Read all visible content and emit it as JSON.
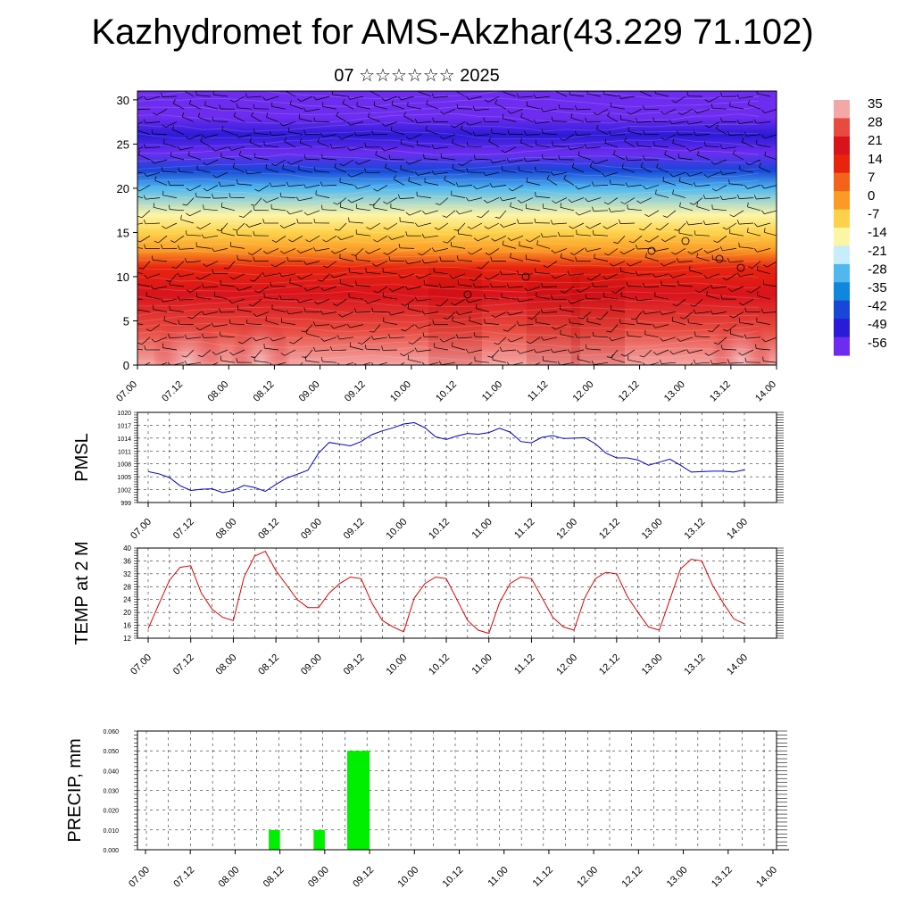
{
  "title": "Kazhydromet for AMS-Akzhar(43.229 71.102)",
  "subtitle": "07 ☆☆☆☆☆☆ 2025",
  "chart_data": [
    {
      "type": "heatmap",
      "name": "upper-air-section",
      "ylim": [
        0,
        31
      ],
      "yticks": [
        0,
        5,
        10,
        15,
        20,
        25,
        30
      ],
      "xticks": [
        "07.00",
        "07.12",
        "08.00",
        "08.12",
        "09.00",
        "09.12",
        "10.00",
        "10.12",
        "11.00",
        "11.12",
        "12.00",
        "12.12",
        "13.00",
        "13.12",
        "14.00"
      ],
      "colorbar": {
        "labels": [
          "35",
          "28",
          "21",
          "14",
          "7",
          "0",
          "-7",
          "-14",
          "-21",
          "-28",
          "-35",
          "-42",
          "-49",
          "-56"
        ],
        "colors": [
          "#f4a7a6",
          "#e84a3f",
          "#d9131b",
          "#e8240f",
          "#f5621a",
          "#fb9a24",
          "#fdd24a",
          "#fdf5a6",
          "#c7ecfb",
          "#50b8ef",
          "#0f87de",
          "#1746d8",
          "#2a1bd8",
          "#6d2cf0"
        ]
      },
      "bands": [
        {
          "level": 0,
          "value": 30
        },
        {
          "level": 4,
          "value": 25
        },
        {
          "level": 8,
          "value": 18
        },
        {
          "level": 11,
          "value": 8
        },
        {
          "level": 13,
          "value": 0
        },
        {
          "level": 15,
          "value": -9
        },
        {
          "level": 17,
          "value": -19
        },
        {
          "level": 20,
          "value": -32
        },
        {
          "level": 22,
          "value": -46
        },
        {
          "level": 24,
          "value": -58
        },
        {
          "level": 26,
          "value": -52
        },
        {
          "level": 28,
          "value": -56
        },
        {
          "level": 31,
          "value": -60
        }
      ]
    },
    {
      "type": "line",
      "name": "pmsl",
      "ylabel": "PMSL",
      "ylim": [
        999,
        1020
      ],
      "yticks": [
        999,
        1002,
        1005,
        1008,
        1011,
        1014,
        1017,
        1020
      ],
      "xticks": [
        "07.00",
        "07.12",
        "08.00",
        "08.12",
        "09.00",
        "09.12",
        "10.00",
        "10.12",
        "11.00",
        "11.12",
        "12.00",
        "12.12",
        "13.00",
        "13.12",
        "14.00"
      ],
      "color": "#0000cc",
      "values": [
        1006.2,
        1005.7,
        1004.8,
        1002.9,
        1001.8,
        1002.1,
        1002.2,
        1001.3,
        1001.8,
        1003.0,
        1002.5,
        1001.6,
        1003.2,
        1004.7,
        1005.6,
        1006.5,
        1010.5,
        1013.0,
        1012.6,
        1012.2,
        1013.2,
        1014.8,
        1015.7,
        1016.4,
        1017.3,
        1017.6,
        1016.4,
        1014.3,
        1013.7,
        1014.5,
        1015.1,
        1014.9,
        1015.3,
        1016.3,
        1015.4,
        1013.2,
        1012.9,
        1014.2,
        1014.6,
        1013.9,
        1014.0,
        1014.1,
        1012.7,
        1010.5,
        1009.4,
        1009.4,
        1008.9,
        1007.7,
        1008.4,
        1009.1,
        1007.7,
        1006.1,
        1006.2,
        1006.3,
        1006.3,
        1006.1,
        1006.6
      ]
    },
    {
      "type": "line",
      "name": "temp-2m",
      "ylabel": "TEMP at 2 M",
      "ylim": [
        12,
        40
      ],
      "yticks": [
        12,
        16,
        20,
        24,
        28,
        32,
        36,
        40
      ],
      "xticks": [
        "07.00",
        "07.12",
        "08.00",
        "08.12",
        "09.00",
        "09.12",
        "10.00",
        "10.12",
        "11.00",
        "11.12",
        "12.00",
        "12.12",
        "13.00",
        "13.12",
        "14.00"
      ],
      "color": "#dd0000",
      "values": [
        15,
        22.5,
        30,
        34,
        34.5,
        26,
        21,
        18.5,
        17.5,
        31,
        37.5,
        39,
        33,
        28.5,
        24,
        21.5,
        21.5,
        26,
        29,
        31,
        30.5,
        23,
        17.5,
        15.5,
        14,
        24.5,
        29,
        31,
        30.5,
        24,
        17.5,
        14.5,
        13.5,
        23,
        29,
        31,
        30.5,
        24.5,
        18.5,
        15.5,
        14.5,
        24.5,
        30.5,
        32.5,
        32,
        25,
        20,
        15.5,
        14.5,
        24,
        33.5,
        36.5,
        36,
        28.5,
        23,
        18,
        16.5
      ]
    },
    {
      "type": "bar",
      "name": "precip",
      "ylabel": "PRECIP, mm",
      "ylim": [
        0,
        0.06
      ],
      "yticks": [
        "0.000",
        "0.010",
        "0.020",
        "0.030",
        "0.040",
        "0.050",
        "0.060"
      ],
      "xticks": [
        "07.00",
        "07.12",
        "08.00",
        "08.12",
        "09.00",
        "09.12",
        "10.00",
        "10.12",
        "11.00",
        "11.12",
        "12.00",
        "12.12",
        "13.00",
        "13.12",
        "14.00"
      ],
      "color": "#00ee00",
      "bars": [
        {
          "start_hour": 33,
          "end_hour": 36,
          "value": 0.01
        },
        {
          "start_hour": 45,
          "end_hour": 48,
          "value": 0.01
        },
        {
          "start_hour": 54,
          "end_hour": 60,
          "value": 0.05
        }
      ]
    }
  ]
}
